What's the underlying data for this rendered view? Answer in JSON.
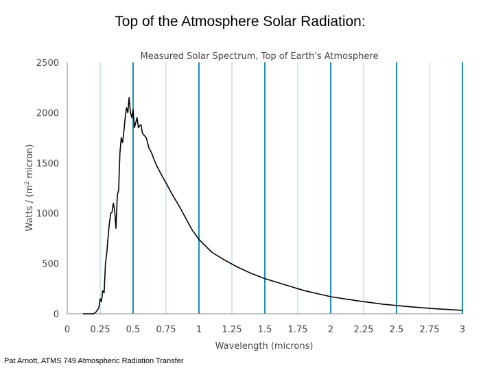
{
  "slide": {
    "title": "Top of the Atmosphere Solar Radiation:",
    "footer": "Pat Arnott, ATMS 749 Atmospheric Radiation Transfer"
  },
  "chart_data": {
    "type": "line",
    "title": "Measured Solar Spectrum, Top of Earth's Atmosphere",
    "xlabel": "Wavelength (microns)",
    "ylabel_main": "Watts / (m",
    "ylabel_sup": "2",
    "ylabel_end": " micron)",
    "xlim": [
      0,
      3
    ],
    "ylim": [
      0,
      2500
    ],
    "xticks": [
      0,
      0.25,
      0.5,
      0.75,
      1,
      1.25,
      1.5,
      1.75,
      2,
      2.25,
      2.5,
      2.75,
      3
    ],
    "xtick_labels": [
      "0",
      "0.25",
      "0.5",
      "0.75",
      "1",
      "1.25",
      "1.5",
      "1.75",
      "2",
      "2.25",
      "2.5",
      "2.75",
      "3"
    ],
    "yticks": [
      0,
      500,
      1000,
      1500,
      2000,
      2500
    ],
    "ytick_labels": [
      "0",
      "500",
      "1000",
      "1500",
      "2000",
      "2500"
    ],
    "grid": "vertical",
    "colors": {
      "grid_major": "#1a8fb0",
      "grid_minor": "#9fd0e0",
      "line": "#000000"
    },
    "series": [
      {
        "x": [
          0.12,
          0.2,
          0.22,
          0.24,
          0.25,
          0.26,
          0.27,
          0.28,
          0.29,
          0.3,
          0.31,
          0.32,
          0.33,
          0.34,
          0.35,
          0.36,
          0.37,
          0.38,
          0.39,
          0.4,
          0.41,
          0.42,
          0.43,
          0.44,
          0.45,
          0.46,
          0.47,
          0.48,
          0.49,
          0.5,
          0.51,
          0.52,
          0.53,
          0.54,
          0.55,
          0.56,
          0.57,
          0.58,
          0.6,
          0.62,
          0.64,
          0.66,
          0.68,
          0.7,
          0.72,
          0.75,
          0.8,
          0.85,
          0.9,
          0.95,
          1.0,
          1.1,
          1.2,
          1.3,
          1.4,
          1.5,
          1.6,
          1.7,
          1.8,
          1.9,
          2.0,
          2.2,
          2.4,
          2.6,
          2.8,
          3.0
        ],
        "y": [
          0,
          0,
          20,
          60,
          150,
          120,
          230,
          210,
          500,
          600,
          760,
          900,
          1000,
          1010,
          1100,
          1030,
          850,
          1180,
          1230,
          1600,
          1750,
          1700,
          1820,
          1950,
          2050,
          2000,
          2150,
          2000,
          1950,
          2030,
          1850,
          1900,
          1950,
          1850,
          1870,
          1880,
          1800,
          1780,
          1750,
          1650,
          1600,
          1530,
          1470,
          1420,
          1370,
          1300,
          1180,
          1070,
          950,
          830,
          740,
          610,
          530,
          460,
          400,
          350,
          310,
          270,
          230,
          200,
          170,
          130,
          95,
          70,
          50,
          35
        ]
      }
    ]
  }
}
